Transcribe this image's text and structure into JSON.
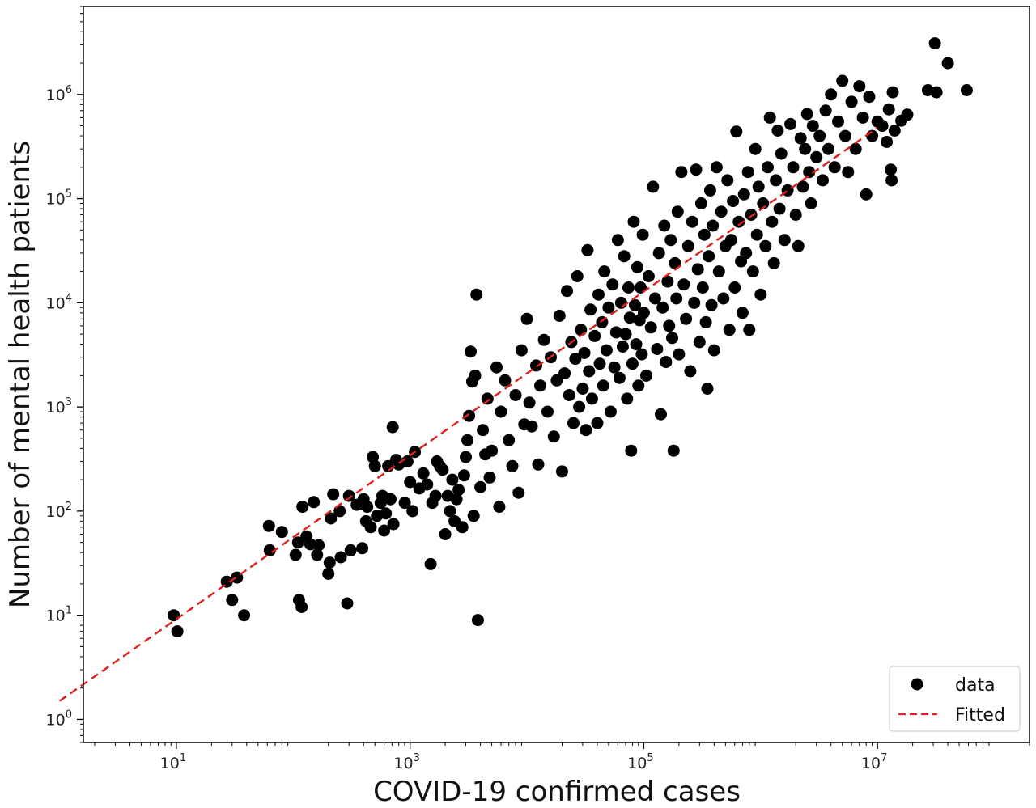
{
  "chart_data": {
    "type": "scatter",
    "xlabel": "COVID-19 confirmed cases",
    "ylabel": "Number of mental health patients",
    "x_scale": "log",
    "y_scale": "log",
    "xlim": [
      1.6,
      200000000
    ],
    "ylim": [
      0.6,
      7000000
    ],
    "x_ticks": [
      {
        "value": 10,
        "base": "10",
        "exp": "1"
      },
      {
        "value": 1000,
        "base": "10",
        "exp": "3"
      },
      {
        "value": 100000,
        "base": "10",
        "exp": "5"
      },
      {
        "value": 10000000,
        "base": "10",
        "exp": "7"
      }
    ],
    "y_ticks": [
      {
        "value": 1,
        "base": "10",
        "exp": "0"
      },
      {
        "value": 10,
        "base": "10",
        "exp": "1"
      },
      {
        "value": 100,
        "base": "10",
        "exp": "2"
      },
      {
        "value": 1000,
        "base": "10",
        "exp": "3"
      },
      {
        "value": 10000,
        "base": "10",
        "exp": "4"
      },
      {
        "value": 100000,
        "base": "10",
        "exp": "5"
      },
      {
        "value": 1000000,
        "base": "10",
        "exp": "6"
      }
    ],
    "grid": false,
    "legend_position": "bottom-right",
    "series": [
      {
        "name": "data",
        "kind": "scatter",
        "color": "#000000",
        "points": [
          [
            9.5,
            10
          ],
          [
            10.2,
            7
          ],
          [
            27,
            21
          ],
          [
            30,
            14
          ],
          [
            33,
            23
          ],
          [
            38,
            10
          ],
          [
            62,
            72
          ],
          [
            63,
            42
          ],
          [
            80,
            63
          ],
          [
            105,
            38
          ],
          [
            110,
            50
          ],
          [
            112,
            14
          ],
          [
            118,
            12
          ],
          [
            120,
            110
          ],
          [
            130,
            57
          ],
          [
            140,
            48
          ],
          [
            150,
            122
          ],
          [
            160,
            38
          ],
          [
            165,
            47
          ],
          [
            200,
            25
          ],
          [
            205,
            32
          ],
          [
            210,
            85
          ],
          [
            220,
            145
          ],
          [
            250,
            100
          ],
          [
            255,
            36
          ],
          [
            290,
            13
          ],
          [
            300,
            140
          ],
          [
            310,
            42
          ],
          [
            350,
            115
          ],
          [
            380,
            118
          ],
          [
            390,
            44
          ],
          [
            400,
            130
          ],
          [
            420,
            80
          ],
          [
            430,
            110
          ],
          [
            460,
            70
          ],
          [
            480,
            330
          ],
          [
            500,
            270
          ],
          [
            520,
            90
          ],
          [
            560,
            120
          ],
          [
            580,
            140
          ],
          [
            600,
            65
          ],
          [
            620,
            95
          ],
          [
            650,
            270
          ],
          [
            680,
            130
          ],
          [
            710,
            640
          ],
          [
            720,
            75
          ],
          [
            760,
            310
          ],
          [
            800,
            280
          ],
          [
            900,
            120
          ],
          [
            950,
            300
          ],
          [
            1000,
            190
          ],
          [
            1050,
            100
          ],
          [
            1100,
            370
          ],
          [
            1200,
            165
          ],
          [
            1300,
            230
          ],
          [
            1400,
            180
          ],
          [
            1500,
            31
          ],
          [
            1550,
            120
          ],
          [
            1650,
            140
          ],
          [
            1700,
            300
          ],
          [
            1800,
            270
          ],
          [
            1900,
            250
          ],
          [
            2000,
            60
          ],
          [
            2100,
            140
          ],
          [
            2200,
            100
          ],
          [
            2300,
            200
          ],
          [
            2400,
            80
          ],
          [
            2500,
            130
          ],
          [
            2600,
            160
          ],
          [
            2800,
            70
          ],
          [
            2900,
            220
          ],
          [
            3000,
            330
          ],
          [
            3100,
            480
          ],
          [
            3200,
            820
          ],
          [
            3300,
            3400
          ],
          [
            3400,
            1750
          ],
          [
            3500,
            90
          ],
          [
            3600,
            2000
          ],
          [
            3700,
            12000
          ],
          [
            3800,
            9
          ],
          [
            4000,
            170
          ],
          [
            4200,
            600
          ],
          [
            4400,
            350
          ],
          [
            4600,
            1200
          ],
          [
            4800,
            210
          ],
          [
            5000,
            380
          ],
          [
            5500,
            2400
          ],
          [
            5800,
            110
          ],
          [
            6000,
            900
          ],
          [
            6500,
            1800
          ],
          [
            7000,
            480
          ],
          [
            7500,
            270
          ],
          [
            8000,
            1300
          ],
          [
            8500,
            150
          ],
          [
            9000,
            3500
          ],
          [
            9500,
            680
          ],
          [
            10000,
            7000
          ],
          [
            10500,
            1100
          ],
          [
            11000,
            650
          ],
          [
            12000,
            2500
          ],
          [
            12500,
            280
          ],
          [
            13000,
            1600
          ],
          [
            14000,
            4400
          ],
          [
            15000,
            900
          ],
          [
            16000,
            3000
          ],
          [
            17000,
            520
          ],
          [
            18000,
            1800
          ],
          [
            19000,
            7500
          ],
          [
            20000,
            240
          ],
          [
            21000,
            2100
          ],
          [
            22000,
            13000
          ],
          [
            23000,
            1300
          ],
          [
            24000,
            4200
          ],
          [
            25000,
            700
          ],
          [
            26000,
            2900
          ],
          [
            27000,
            18000
          ],
          [
            28000,
            1000
          ],
          [
            29000,
            5500
          ],
          [
            30000,
            1500
          ],
          [
            31000,
            3300
          ],
          [
            32000,
            600
          ],
          [
            33000,
            32000
          ],
          [
            34000,
            2200
          ],
          [
            35000,
            8600
          ],
          [
            36000,
            1200
          ],
          [
            38000,
            4800
          ],
          [
            40000,
            700
          ],
          [
            41000,
            12000
          ],
          [
            42000,
            2600
          ],
          [
            44000,
            6500
          ],
          [
            45000,
            1600
          ],
          [
            46000,
            20000
          ],
          [
            48000,
            3500
          ],
          [
            50000,
            9000
          ],
          [
            52000,
            900
          ],
          [
            54000,
            15000
          ],
          [
            56000,
            2400
          ],
          [
            58000,
            5200
          ],
          [
            60000,
            40000
          ],
          [
            62000,
            1900
          ],
          [
            64000,
            10000
          ],
          [
            66000,
            3800
          ],
          [
            68000,
            28000
          ],
          [
            70000,
            5000
          ],
          [
            72000,
            1200
          ],
          [
            74000,
            14000
          ],
          [
            76000,
            7200
          ],
          [
            78000,
            380
          ],
          [
            80000,
            2600
          ],
          [
            82000,
            60000
          ],
          [
            84000,
            9500
          ],
          [
            86000,
            4000
          ],
          [
            88000,
            22000
          ],
          [
            90000,
            1600
          ],
          [
            92000,
            6800
          ],
          [
            94000,
            14000
          ],
          [
            96000,
            3200
          ],
          [
            98000,
            45000
          ],
          [
            100000,
            8000
          ],
          [
            105000,
            2000
          ],
          [
            110000,
            18000
          ],
          [
            115000,
            5800
          ],
          [
            120000,
            130000
          ],
          [
            125000,
            11000
          ],
          [
            130000,
            3600
          ],
          [
            135000,
            30000
          ],
          [
            140000,
            850
          ],
          [
            145000,
            9000
          ],
          [
            150000,
            55000
          ],
          [
            155000,
            2700
          ],
          [
            160000,
            16000
          ],
          [
            165000,
            6000
          ],
          [
            170000,
            40000
          ],
          [
            175000,
            4600
          ],
          [
            180000,
            380
          ],
          [
            185000,
            24000
          ],
          [
            190000,
            11000
          ],
          [
            195000,
            75000
          ],
          [
            200000,
            3200
          ],
          [
            210000,
            180000
          ],
          [
            220000,
            15000
          ],
          [
            230000,
            7000
          ],
          [
            240000,
            35000
          ],
          [
            250000,
            2200
          ],
          [
            260000,
            60000
          ],
          [
            270000,
            10000
          ],
          [
            280000,
            190000
          ],
          [
            290000,
            21000
          ],
          [
            300000,
            4200
          ],
          [
            310000,
            90000
          ],
          [
            320000,
            14000
          ],
          [
            330000,
            45000
          ],
          [
            340000,
            6500
          ],
          [
            350000,
            1500
          ],
          [
            360000,
            28000
          ],
          [
            370000,
            120000
          ],
          [
            380000,
            9500
          ],
          [
            390000,
            55000
          ],
          [
            400000,
            3500
          ],
          [
            420000,
            200000
          ],
          [
            440000,
            20000
          ],
          [
            460000,
            75000
          ],
          [
            480000,
            11000
          ],
          [
            500000,
            35000
          ],
          [
            520000,
            150000
          ],
          [
            540000,
            5500
          ],
          [
            560000,
            40000
          ],
          [
            580000,
            95000
          ],
          [
            600000,
            14000
          ],
          [
            620000,
            440000
          ],
          [
            650000,
            60000
          ],
          [
            680000,
            25000
          ],
          [
            700000,
            8000
          ],
          [
            720000,
            110000
          ],
          [
            750000,
            30000
          ],
          [
            780000,
            180000
          ],
          [
            800000,
            5500
          ],
          [
            830000,
            70000
          ],
          [
            860000,
            20000
          ],
          [
            900000,
            300000
          ],
          [
            930000,
            45000
          ],
          [
            960000,
            130000
          ],
          [
            1000000,
            12000
          ],
          [
            1050000,
            90000
          ],
          [
            1100000,
            35000
          ],
          [
            1150000,
            200000
          ],
          [
            1200000,
            600000
          ],
          [
            1250000,
            60000
          ],
          [
            1300000,
            24000
          ],
          [
            1350000,
            150000
          ],
          [
            1400000,
            450000
          ],
          [
            1450000,
            80000
          ],
          [
            1500000,
            270000
          ],
          [
            1600000,
            40000
          ],
          [
            1700000,
            120000
          ],
          [
            1800000,
            520000
          ],
          [
            1900000,
            200000
          ],
          [
            2000000,
            70000
          ],
          [
            2100000,
            35000
          ],
          [
            2200000,
            380000
          ],
          [
            2300000,
            130000
          ],
          [
            2400000,
            300000
          ],
          [
            2500000,
            650000
          ],
          [
            2600000,
            180000
          ],
          [
            2700000,
            90000
          ],
          [
            2800000,
            500000
          ],
          [
            3000000,
            250000
          ],
          [
            3200000,
            400000
          ],
          [
            3400000,
            150000
          ],
          [
            3600000,
            700000
          ],
          [
            3800000,
            300000
          ],
          [
            4000000,
            1000000
          ],
          [
            4300000,
            200000
          ],
          [
            4600000,
            550000
          ],
          [
            5000000,
            1350000
          ],
          [
            5300000,
            400000
          ],
          [
            5600000,
            180000
          ],
          [
            6000000,
            850000
          ],
          [
            6500000,
            300000
          ],
          [
            7000000,
            1200000
          ],
          [
            7500000,
            600000
          ],
          [
            8000000,
            110000
          ],
          [
            8500000,
            950000
          ],
          [
            9000000,
            400000
          ],
          [
            10000000,
            550000
          ],
          [
            11000000,
            500000
          ],
          [
            12000000,
            350000
          ],
          [
            12500000,
            720000
          ],
          [
            13000000,
            190000
          ],
          [
            13200000,
            150000
          ],
          [
            13500000,
            1050000
          ],
          [
            14000000,
            450000
          ],
          [
            16000000,
            560000
          ],
          [
            18000000,
            640000
          ],
          [
            27000000,
            1100000
          ],
          [
            31000000,
            3100000
          ],
          [
            32000000,
            1050000
          ],
          [
            40000000,
            2000000
          ],
          [
            58000000,
            1100000
          ]
        ]
      },
      {
        "name": "Fitted",
        "kind": "line",
        "style": "dashed",
        "color": "#e0201b",
        "points": [
          [
            1,
            1.5
          ],
          [
            10000000,
            480000
          ]
        ]
      }
    ]
  }
}
